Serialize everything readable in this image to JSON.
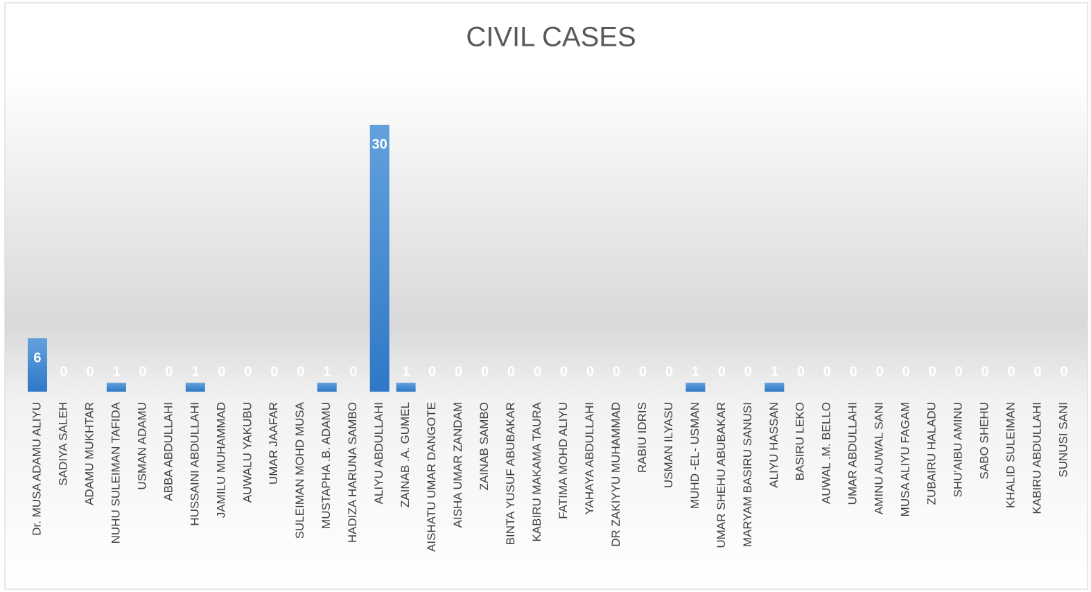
{
  "chart_data": {
    "type": "bar",
    "title": "CIVIL CASES",
    "categories": [
      "Dr. MUSA ADAMU ALIYU",
      "SADIYA SALEH",
      "ADAMU MUKHTAR",
      "NUHU SULEIMAN TAFIDA",
      "USMAN ADAMU",
      "ABBA ABDULLAHI",
      "HUSSAINI ABDULLAHI",
      "JAMILU MUHAMMAD",
      "AUWALU YAKUBU",
      "UMAR JAAFAR",
      "SULEIMAN MOHD MUSA",
      "MUSTAPHA .B. ADAMU",
      "HADIZA HARUNA SAMBO",
      "ALIYU ABDULLAHI",
      "ZAINAB .A. GUMEL",
      "AISHATU UMAR DANGOTE",
      "AISHA UMAR ZANDAM",
      "ZAINAB SAMBO",
      "BINTA YUSUF ABUBAKAR",
      "KABIRU MAKAMA TAURA",
      "FATIMA MOHD ALIYU",
      "YAHAYA ABDULLAHI",
      "DR ZAKIYYU MUHAMMAD",
      "RABIU IDRIS",
      "USMAN ILYASU",
      "MUHD -EL- USMAN",
      "UMAR SHEHU ABUBAKAR",
      "MARYAM BASIRU SANUSI",
      "ALIYU HASSAN",
      "BASIRU LEKO",
      "AUWAL .M. BELLO",
      "UMAR ABDULLAHI",
      "AMINU AUWAL SANI",
      "MUSA ALIYU FAGAM",
      "ZUBAIRU HALADU",
      "SHU'AIBU AMINU",
      "SABO SHEHU",
      "KHALID SULEIMAN",
      "KABIRU ABDULLAHI",
      "SUNUSI SANI"
    ],
    "values": [
      6,
      0,
      0,
      1,
      0,
      0,
      1,
      0,
      0,
      0,
      0,
      1,
      0,
      30,
      1,
      0,
      0,
      0,
      0,
      0,
      0,
      0,
      0,
      0,
      0,
      1,
      0,
      0,
      1,
      0,
      0,
      0,
      0,
      0,
      0,
      0,
      0,
      0,
      0,
      0
    ],
    "color": "#4a8fd6"
  }
}
